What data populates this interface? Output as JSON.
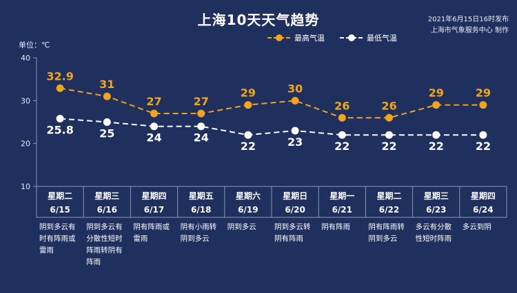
{
  "title": "上海10天天气趋势",
  "issued": {
    "time": "2021年6月15日16时发布",
    "source": "上海市气象服务中心 制作"
  },
  "unit_label": "单位：℃",
  "colors": {
    "background": "#1f2f5e",
    "high": "#f2a51a",
    "low": "#ffffff",
    "grid": "#8c97b8"
  },
  "chart_data": {
    "type": "line",
    "ylim": [
      10,
      40
    ],
    "yticks": [
      10,
      20,
      30,
      40
    ],
    "categories": [
      "星期二",
      "星期三",
      "星期四",
      "星期五",
      "星期六",
      "星期日",
      "星期一",
      "星期二",
      "星期三",
      "星期四"
    ],
    "dates": [
      "6/15",
      "6/16",
      "6/17",
      "6/18",
      "6/19",
      "6/20",
      "6/21",
      "6/22",
      "6/23",
      "6/24"
    ],
    "series": [
      {
        "name": "最高气温",
        "values": [
          32.9,
          31,
          27,
          27,
          29,
          30,
          26,
          26,
          29,
          29
        ]
      },
      {
        "name": "最低气温",
        "values": [
          25.8,
          25,
          24,
          24,
          22,
          23,
          22,
          22,
          22,
          22
        ]
      }
    ],
    "legend_position": "top-right",
    "grid": false
  },
  "weather": [
    "阴到多云有时有阵雨或雷雨",
    "阴到多云有分散性短时阵雨转阴有阵雨",
    "阴有阵雨或雷雨",
    "阴有小雨转阴到多云",
    "阴到多云",
    "阴到多云转阴有阵雨",
    "阴有阵雨",
    "阴有阵雨转阴到多云",
    "多云有分散性短时阵雨",
    "多云到阴"
  ]
}
